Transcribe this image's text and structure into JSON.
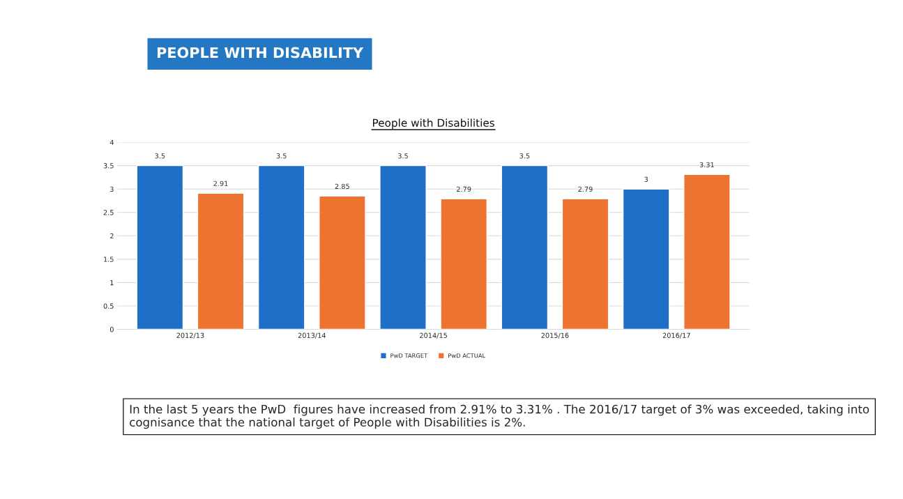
{
  "chart_data": {
    "type": "bar",
    "title": "PEOPLE WITH DISABILITY",
    "subtitle": "People with Disabilities",
    "categories": [
      "2012/13",
      "2013/14",
      "2014/15",
      "2015/16",
      "2016/17"
    ],
    "series": [
      {
        "name": "PwD TARGET",
        "color": "#1f6fc9",
        "values": [
          3.5,
          3.5,
          3.5,
          3.5,
          3
        ]
      },
      {
        "name": "PwD ACTUAL",
        "color": "#ed7430",
        "values": [
          2.91,
          2.85,
          2.79,
          2.79,
          3.31
        ]
      }
    ],
    "ylim": [
      0,
      4
    ],
    "yticks": [
      0,
      0.5,
      1,
      1.5,
      2,
      2.5,
      3,
      3.5,
      4
    ],
    "grid": "y",
    "legend": "bottom",
    "data_labels": true,
    "annotations": [
      "In the last 5 years the PwD  figures have increased from 2.91% to 3.31% . The 2016/17 target of 3% was exceeded, taking into cognisance that the national target of People with Disabilities is 2%."
    ]
  }
}
